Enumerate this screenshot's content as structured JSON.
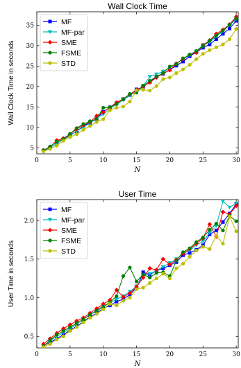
{
  "chart_data": [
    {
      "type": "line",
      "title": "Wall Clock Time",
      "xlabel": "N",
      "ylabel": "Wall Clock Time in seconds",
      "xlim": [
        0,
        30.3
      ],
      "ylim": [
        3.5,
        38.3
      ],
      "xticks": [
        0,
        5,
        10,
        15,
        20,
        25,
        30
      ],
      "xtick_labels": [
        "0",
        "5",
        "10",
        "15",
        "20",
        "25",
        "30"
      ],
      "yticks": [
        5,
        10,
        15,
        20,
        25,
        30,
        35
      ],
      "ytick_labels": [
        "5",
        "10",
        "15",
        "20",
        "25",
        "30",
        "35"
      ],
      "grid": false,
      "legend": "top-left",
      "x": [
        1,
        2,
        3,
        4,
        5,
        6,
        7,
        8,
        9,
        10,
        11,
        12,
        13,
        14,
        15,
        16,
        17,
        18,
        19,
        20,
        21,
        22,
        23,
        24,
        25,
        26,
        27,
        28,
        29,
        30
      ],
      "series": [
        {
          "name": "MF",
          "color": "#0000ff",
          "marker": "square",
          "values": [
            4.3,
            5.1,
            6.0,
            7.1,
            8.1,
            9.0,
            10.3,
            11.1,
            12.1,
            13.8,
            14.9,
            15.8,
            16.9,
            17.9,
            19.3,
            19.9,
            21.1,
            22.4,
            23.1,
            24.1,
            25.1,
            26.1,
            27.4,
            28.4,
            29.5,
            30.3,
            31.6,
            32.9,
            34.2,
            36.1
          ]
        },
        {
          "name": "MF-par",
          "color": "#00bfbf",
          "marker": "triangle-down",
          "values": [
            4.1,
            5.0,
            6.1,
            7.0,
            7.9,
            9.1,
            10.0,
            11.0,
            12.3,
            13.2,
            14.5,
            15.6,
            16.7,
            17.8,
            19.0,
            20.2,
            22.4,
            23.0,
            23.7,
            24.6,
            25.6,
            26.8,
            27.6,
            28.6,
            30.2,
            30.8,
            32.3,
            33.5,
            35.1,
            36.5
          ]
        },
        {
          "name": "SME",
          "color": "#ff0000",
          "marker": "diamond",
          "values": [
            4.4,
            5.2,
            6.8,
            7.3,
            8.3,
            9.6,
            10.5,
            11.3,
            12.8,
            13.7,
            14.9,
            16.1,
            16.9,
            18.1,
            19.1,
            20.0,
            21.0,
            22.2,
            23.2,
            24.0,
            25.6,
            26.7,
            27.8,
            28.3,
            30.1,
            31.3,
            32.9,
            33.9,
            35.2,
            37.1
          ]
        },
        {
          "name": "FSME",
          "color": "#008000",
          "marker": "circle",
          "values": [
            4.3,
            5.3,
            6.5,
            7.1,
            8.4,
            9.8,
            10.8,
            11.5,
            12.0,
            14.8,
            14.9,
            15.7,
            16.9,
            18.2,
            18.5,
            20.2,
            21.4,
            22.4,
            23.3,
            24.9,
            25.5,
            26.9,
            27.8,
            28.7,
            29.9,
            31.2,
            32.5,
            33.7,
            35.1,
            36.7
          ]
        },
        {
          "name": "STD",
          "color": "#bfbf00",
          "marker": "circle",
          "values": [
            4.1,
            4.7,
            5.5,
            6.7,
            7.6,
            8.3,
            9.4,
            10.3,
            11.3,
            12.0,
            14.2,
            14.8,
            15.1,
            16.3,
            19.1,
            19.2,
            19.0,
            20.1,
            21.8,
            22.2,
            23.3,
            24.2,
            25.3,
            26.7,
            28.0,
            28.9,
            29.6,
            30.3,
            31.6,
            34.1
          ]
        }
      ]
    },
    {
      "type": "line",
      "title": "User Time",
      "xlabel": "N",
      "ylabel": "User Time in seconds",
      "xlim": [
        0,
        30.3
      ],
      "ylim": [
        0.35,
        2.27
      ],
      "xticks": [
        0,
        5,
        10,
        15,
        20,
        25,
        30
      ],
      "xtick_labels": [
        "0",
        "5",
        "10",
        "15",
        "20",
        "25",
        "30"
      ],
      "yticks": [
        0.5,
        1.0,
        1.5,
        2.0
      ],
      "ytick_labels": [
        "0.5",
        "1.0",
        "1.5",
        "2.0"
      ],
      "grid": false,
      "legend": "top-left",
      "x": [
        1,
        2,
        3,
        4,
        5,
        6,
        7,
        8,
        9,
        10,
        11,
        12,
        13,
        14,
        15,
        16,
        17,
        18,
        19,
        20,
        21,
        22,
        23,
        24,
        25,
        26,
        27,
        28,
        29,
        30
      ],
      "series": [
        {
          "name": "MF",
          "color": "#0000ff",
          "marker": "square",
          "values": [
            0.38,
            0.42,
            0.47,
            0.52,
            0.58,
            0.63,
            0.69,
            0.75,
            0.8,
            0.86,
            0.9,
            0.95,
            0.98,
            1.04,
            1.13,
            1.33,
            1.3,
            1.35,
            1.38,
            1.42,
            1.46,
            1.55,
            1.58,
            1.62,
            1.68,
            1.82,
            1.87,
            1.98,
            2.09,
            2.21
          ]
        },
        {
          "name": "MF-par",
          "color": "#00bfbf",
          "marker": "triangle-down",
          "values": [
            0.37,
            0.44,
            0.5,
            0.55,
            0.6,
            0.66,
            0.72,
            0.78,
            0.84,
            0.9,
            0.93,
            0.98,
            1.02,
            1.08,
            1.15,
            1.28,
            1.31,
            1.35,
            1.4,
            1.45,
            1.5,
            1.57,
            1.61,
            1.68,
            1.73,
            1.84,
            1.93,
            2.25,
            2.17,
            2.22
          ]
        },
        {
          "name": "SME",
          "color": "#ff0000",
          "marker": "diamond",
          "values": [
            0.4,
            0.47,
            0.54,
            0.6,
            0.65,
            0.7,
            0.74,
            0.8,
            0.86,
            0.92,
            0.97,
            1.1,
            1.01,
            1.06,
            1.14,
            1.26,
            1.38,
            1.36,
            1.5,
            1.43,
            1.49,
            1.57,
            1.63,
            1.7,
            1.77,
            1.95,
            1.79,
            2.11,
            2.08,
            2.19
          ]
        },
        {
          "name": "FSME",
          "color": "#008000",
          "marker": "circle",
          "values": [
            0.37,
            0.45,
            0.52,
            0.57,
            0.62,
            0.67,
            0.72,
            0.78,
            0.83,
            0.88,
            0.94,
            1.02,
            1.28,
            1.39,
            1.21,
            1.3,
            1.26,
            1.32,
            1.33,
            1.28,
            1.48,
            1.59,
            1.64,
            1.72,
            1.78,
            1.88,
            1.96,
            1.87,
            2.06,
            1.99
          ]
        },
        {
          "name": "STD",
          "color": "#bfbf00",
          "marker": "circle",
          "values": [
            0.36,
            0.4,
            0.46,
            0.5,
            0.57,
            0.62,
            0.68,
            0.74,
            0.79,
            0.85,
            0.92,
            0.9,
            0.96,
            1.0,
            1.11,
            1.13,
            1.19,
            1.25,
            1.31,
            1.25,
            1.38,
            1.44,
            1.53,
            1.61,
            1.66,
            1.63,
            1.8,
            1.7,
            2.05,
            1.86
          ]
        }
      ]
    }
  ]
}
